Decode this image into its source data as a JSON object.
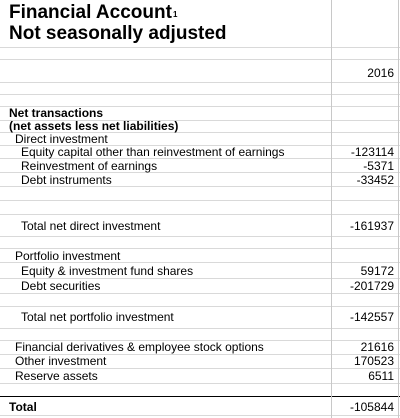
{
  "title": {
    "line1": "Financial Account",
    "footnote": "1",
    "line2": "Not seasonally adjusted"
  },
  "year_header": "2016",
  "net_transactions": {
    "heading": "Net transactions",
    "subheading": "(net assets less net liabilities)"
  },
  "direct": {
    "heading": "Direct investment",
    "rows": [
      {
        "label": "Equity capital other than reinvestment of earnings",
        "value": "-123114"
      },
      {
        "label": "Reinvestment of earnings",
        "value": "-5371"
      },
      {
        "label": "Debt instruments",
        "value": "-33452"
      }
    ],
    "total_label": "Total net direct investment",
    "total_value": "-161937"
  },
  "portfolio": {
    "heading": "Portfolio investment",
    "rows": [
      {
        "label": "Equity & investment fund shares",
        "value": "59172"
      },
      {
        "label": "Debt securities",
        "value": "-201729"
      }
    ],
    "total_label": "Total net portfolio investment",
    "total_value": "-142557"
  },
  "other_rows": [
    {
      "label": "Financial derivatives & employee stock options",
      "value": "21616"
    },
    {
      "label": "Other investment",
      "value": "170523"
    },
    {
      "label": "Reserve assets",
      "value": "6511"
    }
  ],
  "total": {
    "label": "Total",
    "value": "-105844"
  }
}
